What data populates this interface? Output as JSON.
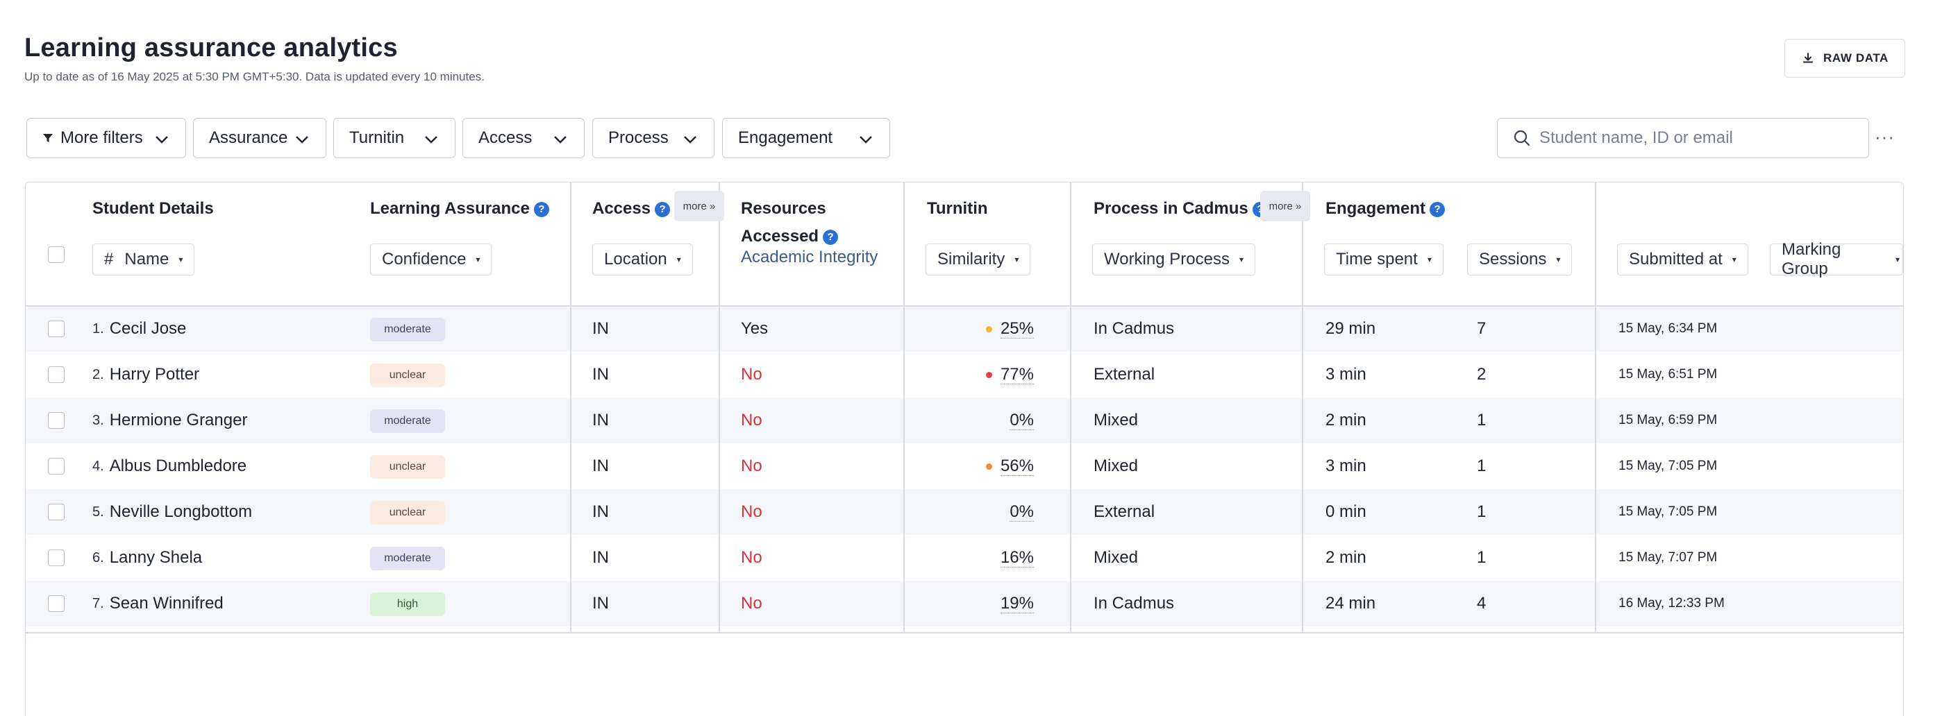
{
  "header": {
    "title": "Learning assurance analytics",
    "subtitle": "Up to date as of 16 May 2025 at 5:30 PM GMT+5:30. Data is updated every 10 minutes.",
    "raw_data_label": "RAW DATA"
  },
  "filters": {
    "more_filters": "More filters",
    "assurance": "Assurance",
    "turnitin": "Turnitin",
    "access": "Access",
    "process": "Process",
    "engagement": "Engagement"
  },
  "search": {
    "placeholder": "Student name, ID or email"
  },
  "overflow_menu": "···",
  "groups": {
    "student_details": "Student Details",
    "learning_assurance": "Learning Assurance",
    "access": "Access",
    "resources_accessed_1": "Resources",
    "resources_accessed_2": "Accessed",
    "turnitin": "Turnitin",
    "process_in_cadmus": "Process in Cadmus",
    "engagement": "Engagement",
    "more": "more »",
    "help": "?"
  },
  "columns": {
    "hash": "#",
    "name": "Name",
    "confidence": "Confidence",
    "location": "Location",
    "academic_integrity": "Academic Integrity",
    "similarity": "Similarity",
    "working_process": "Working Process",
    "time_spent": "Time spent",
    "sessions": "Sessions",
    "submitted_at": "Submitted at",
    "marking_group": "Marking Group",
    "caret": "▾"
  },
  "confidence_colors": {
    "moderate": {
      "bg": "#e4e3f3",
      "fg": "#3d3f5e"
    },
    "unclear": {
      "bg": "#fcebe0",
      "fg": "#5c4536"
    },
    "high": {
      "bg": "#d9f3d9",
      "fg": "#2f5e36"
    }
  },
  "dot_colors": {
    "yellow": "#f2b53a",
    "red": "#e0414b",
    "orange": "#f08a3c"
  },
  "rows": [
    {
      "num": "1.",
      "name": "Cecil Jose",
      "confidence": "moderate",
      "location": "IN",
      "resources": "Yes",
      "similarity": "25%",
      "dot": "yellow",
      "process": "In Cadmus",
      "time": "29 min",
      "sessions": "7",
      "submitted": "15 May, 6:34 PM"
    },
    {
      "num": "2.",
      "name": "Harry Potter",
      "confidence": "unclear",
      "location": "IN",
      "resources": "No",
      "similarity": "77%",
      "dot": "red",
      "process": "External",
      "time": "3 min",
      "sessions": "2",
      "submitted": "15 May, 6:51 PM"
    },
    {
      "num": "3.",
      "name": "Hermione Granger",
      "confidence": "moderate",
      "location": "IN",
      "resources": "No",
      "similarity": "0%",
      "dot": "",
      "process": "Mixed",
      "time": "2 min",
      "sessions": "1",
      "submitted": "15 May, 6:59 PM"
    },
    {
      "num": "4.",
      "name": "Albus Dumbledore",
      "confidence": "unclear",
      "location": "IN",
      "resources": "No",
      "similarity": "56%",
      "dot": "orange",
      "process": "Mixed",
      "time": "3 min",
      "sessions": "1",
      "submitted": "15 May, 7:05 PM"
    },
    {
      "num": "5.",
      "name": "Neville Longbottom",
      "confidence": "unclear",
      "location": "IN",
      "resources": "No",
      "similarity": "0%",
      "dot": "",
      "process": "External",
      "time": "0 min",
      "sessions": "1",
      "submitted": "15 May, 7:05 PM"
    },
    {
      "num": "6.",
      "name": "Lanny Shela",
      "confidence": "moderate",
      "location": "IN",
      "resources": "No",
      "similarity": "16%",
      "dot": "",
      "process": "Mixed",
      "time": "2 min",
      "sessions": "1",
      "submitted": "15 May, 7:07 PM"
    },
    {
      "num": "7.",
      "name": "Sean Winnifred",
      "confidence": "high",
      "location": "IN",
      "resources": "No",
      "similarity": "19%",
      "dot": "",
      "process": "In Cadmus",
      "time": "24 min",
      "sessions": "4",
      "submitted": "16 May, 12:33 PM"
    }
  ]
}
